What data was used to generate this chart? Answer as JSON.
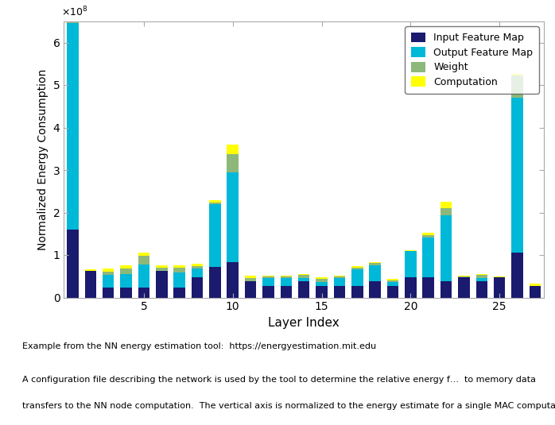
{
  "title": "",
  "xlabel": "Layer Index",
  "ylabel": "Normalized Energy Consumption",
  "ylim": [
    0,
    650000000.0
  ],
  "legend_labels": [
    "Input Feature Map",
    "Output Feature Map",
    "Weight",
    "Computation"
  ],
  "colors": [
    "#1a1a6e",
    "#00b8d8",
    "#8db87a",
    "#ffff00"
  ],
  "bar_width": 0.65,
  "layers": [
    1,
    2,
    3,
    4,
    5,
    6,
    7,
    8,
    9,
    10,
    11,
    12,
    13,
    14,
    15,
    16,
    17,
    18,
    19,
    20,
    21,
    22,
    23,
    24,
    25,
    26,
    27
  ],
  "input_feature_map": [
    160000000.0,
    62000000.0,
    23000000.0,
    23000000.0,
    23000000.0,
    62000000.0,
    23000000.0,
    47000000.0,
    72000000.0,
    83000000.0,
    38000000.0,
    28000000.0,
    28000000.0,
    38000000.0,
    28000000.0,
    28000000.0,
    28000000.0,
    38000000.0,
    28000000.0,
    47000000.0,
    47000000.0,
    38000000.0,
    47000000.0,
    38000000.0,
    47000000.0,
    105000000.0,
    28000000.0
  ],
  "output_feature_map": [
    485000000.0,
    0.0,
    30000000.0,
    33000000.0,
    55000000.0,
    0.0,
    35000000.0,
    22000000.0,
    147000000.0,
    212000000.0,
    0.0,
    17000000.0,
    17000000.0,
    8000000.0,
    8000000.0,
    17000000.0,
    38000000.0,
    38000000.0,
    8000000.0,
    62000000.0,
    95000000.0,
    155000000.0,
    0.0,
    8000000.0,
    0.0,
    365000000.0,
    0.0
  ],
  "weight": [
    77000000.0,
    0.0,
    8000000.0,
    12000000.0,
    20000000.0,
    8000000.0,
    12000000.0,
    5000000.0,
    5000000.0,
    42000000.0,
    8000000.0,
    5000000.0,
    5000000.0,
    8000000.0,
    8000000.0,
    5000000.0,
    5000000.0,
    5000000.0,
    5000000.0,
    0.0,
    5000000.0,
    18000000.0,
    2000000.0,
    8000000.0,
    0.0,
    52000000.0,
    0.0
  ],
  "computation": [
    48000000.0,
    5000000.0,
    8000000.0,
    8000000.0,
    8000000.0,
    5000000.0,
    5000000.0,
    5000000.0,
    5000000.0,
    22000000.0,
    5000000.0,
    2000000.0,
    2000000.0,
    2000000.0,
    3000000.0,
    2000000.0,
    2000000.0,
    2000000.0,
    2000000.0,
    2000000.0,
    5000000.0,
    15000000.0,
    2000000.0,
    2000000.0,
    2000000.0,
    5000000.0,
    5000000.0
  ],
  "footnote1": "Example from the NN energy estimation tool:  https://energyestimation.mit.edu",
  "footnote2": "A configuration file describing the network is used by the tool to determine the relative energy f…  to memory data\ntransfers to the NN node computation.  The vertical axis is normalized to the energy estimate for a single MAC computation.",
  "background_color": "#ffffff",
  "axes_background": "#ffffff",
  "figure_width": 6.98,
  "figure_height": 5.35
}
